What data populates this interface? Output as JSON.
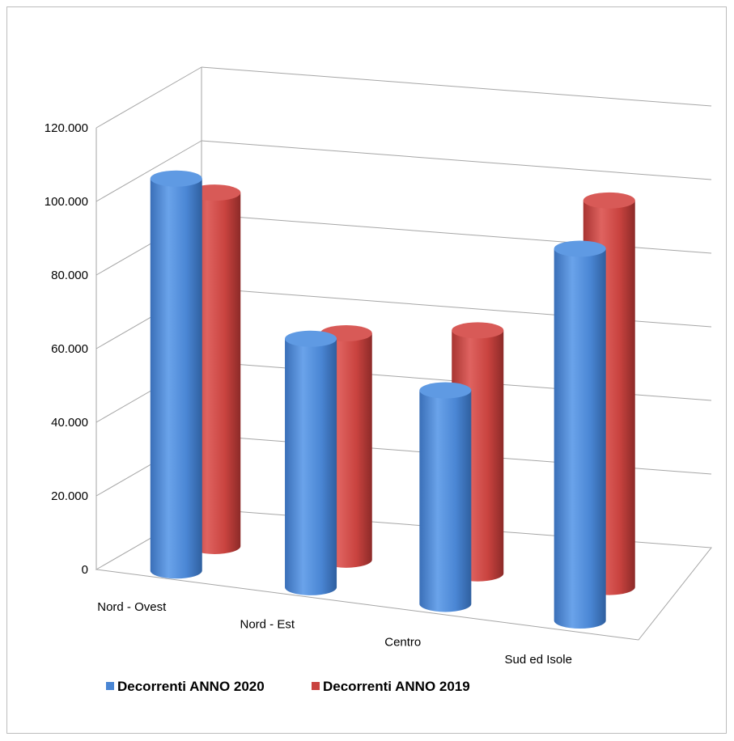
{
  "chart_data": {
    "type": "bar",
    "style": "3d-cylinder",
    "categories": [
      "Nord - Ovest",
      "Nord - Est",
      "Centro",
      "Sud ed Isole"
    ],
    "series": [
      {
        "name": "Decorrenti ANNO 2020",
        "color": "#4a86d4",
        "values": [
          106500,
          67500,
          58000,
          101000
        ]
      },
      {
        "name": "Decorrenti ANNO 2019",
        "color": "#c9433f",
        "values": [
          96000,
          61500,
          66000,
          105000
        ]
      }
    ],
    "y_ticks": [
      "0",
      "20.000",
      "40.000",
      "60.000",
      "80.000",
      "100.000",
      "120.000"
    ],
    "ylim": [
      0,
      120000
    ],
    "grid": true,
    "legend_position": "bottom-left"
  }
}
